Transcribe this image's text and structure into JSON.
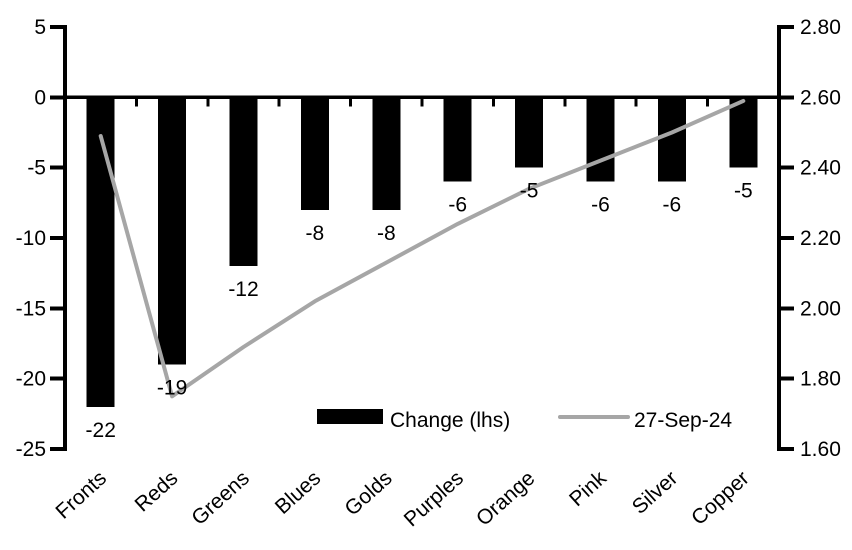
{
  "chart_data": {
    "type": "bar",
    "subtype": "combo-bar-line-dual-axis",
    "title": "",
    "categories": [
      "Fronts",
      "Reds",
      "Greens",
      "Blues",
      "Golds",
      "Purples",
      "Orange",
      "Pink",
      "Silver",
      "Copper"
    ],
    "series": [
      {
        "name": "Change (lhs)",
        "type": "bar",
        "axis": "left",
        "color": "#000000",
        "values": [
          -22,
          -19,
          -12,
          -8,
          -8,
          -6,
          -5,
          -6,
          -6,
          -5
        ]
      },
      {
        "name": "27-Sep-24",
        "type": "line",
        "axis": "right",
        "color": "#a6a6a6",
        "values": [
          2.49,
          1.75,
          1.89,
          2.02,
          2.13,
          2.24,
          2.34,
          2.42,
          2.5,
          2.59
        ]
      }
    ],
    "data_labels": [
      "-22",
      "-19",
      "-12",
      "-8",
      "-8",
      "-6",
      "-5",
      "-6",
      "-6",
      "-5"
    ],
    "left_axis": {
      "tick_labels": [
        "5",
        "0",
        "-5",
        "-10",
        "-15",
        "-20",
        "-25"
      ],
      "tick_values": [
        5,
        0,
        -5,
        -10,
        -15,
        -20,
        -25
      ],
      "range": [
        -25,
        5
      ]
    },
    "right_axis": {
      "tick_labels": [
        "2.80",
        "2.60",
        "2.40",
        "2.20",
        "2.00",
        "1.80",
        "1.60"
      ],
      "tick_values": [
        2.8,
        2.6,
        2.4,
        2.2,
        2.0,
        1.8,
        1.6
      ],
      "range": [
        1.6,
        2.8
      ]
    },
    "legend": {
      "position": "inside-bottom",
      "items": [
        {
          "label": "Change (lhs)",
          "swatch": "bar",
          "color": "#000000"
        },
        {
          "label": "27-Sep-24",
          "swatch": "line",
          "color": "#a6a6a6"
        }
      ]
    },
    "grid": "off",
    "colors": {
      "bar": "#000000",
      "line": "#a6a6a6",
      "axis": "#000000",
      "background": "#ffffff"
    }
  }
}
